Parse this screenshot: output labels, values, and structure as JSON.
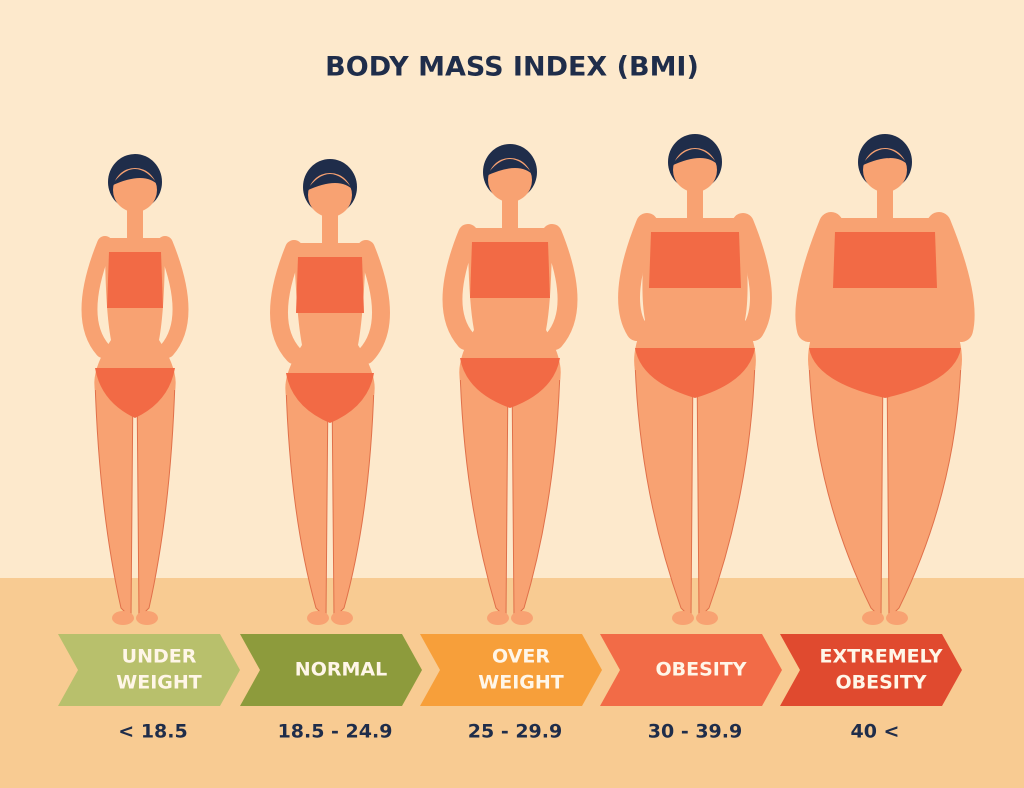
{
  "title": "BODY MASS INDEX (BMI)",
  "categories": [
    {
      "label": [
        "UNDER",
        "WEIGHT"
      ],
      "range": "< 18.5",
      "color": "#b8c06c"
    },
    {
      "label": [
        "NORMAL"
      ],
      "range": "18.5 - 24.9",
      "color": "#8d9b3c"
    },
    {
      "label": [
        "OVER",
        "WEIGHT"
      ],
      "range": "25 - 29.9",
      "color": "#f79f3a"
    },
    {
      "label": [
        "OBESITY"
      ],
      "range": "30 - 39.9",
      "color": "#f26b47"
    },
    {
      "label": [
        "EXTREMELY",
        "OBESITY"
      ],
      "range": "40 <",
      "color": "#e04a2f"
    }
  ]
}
